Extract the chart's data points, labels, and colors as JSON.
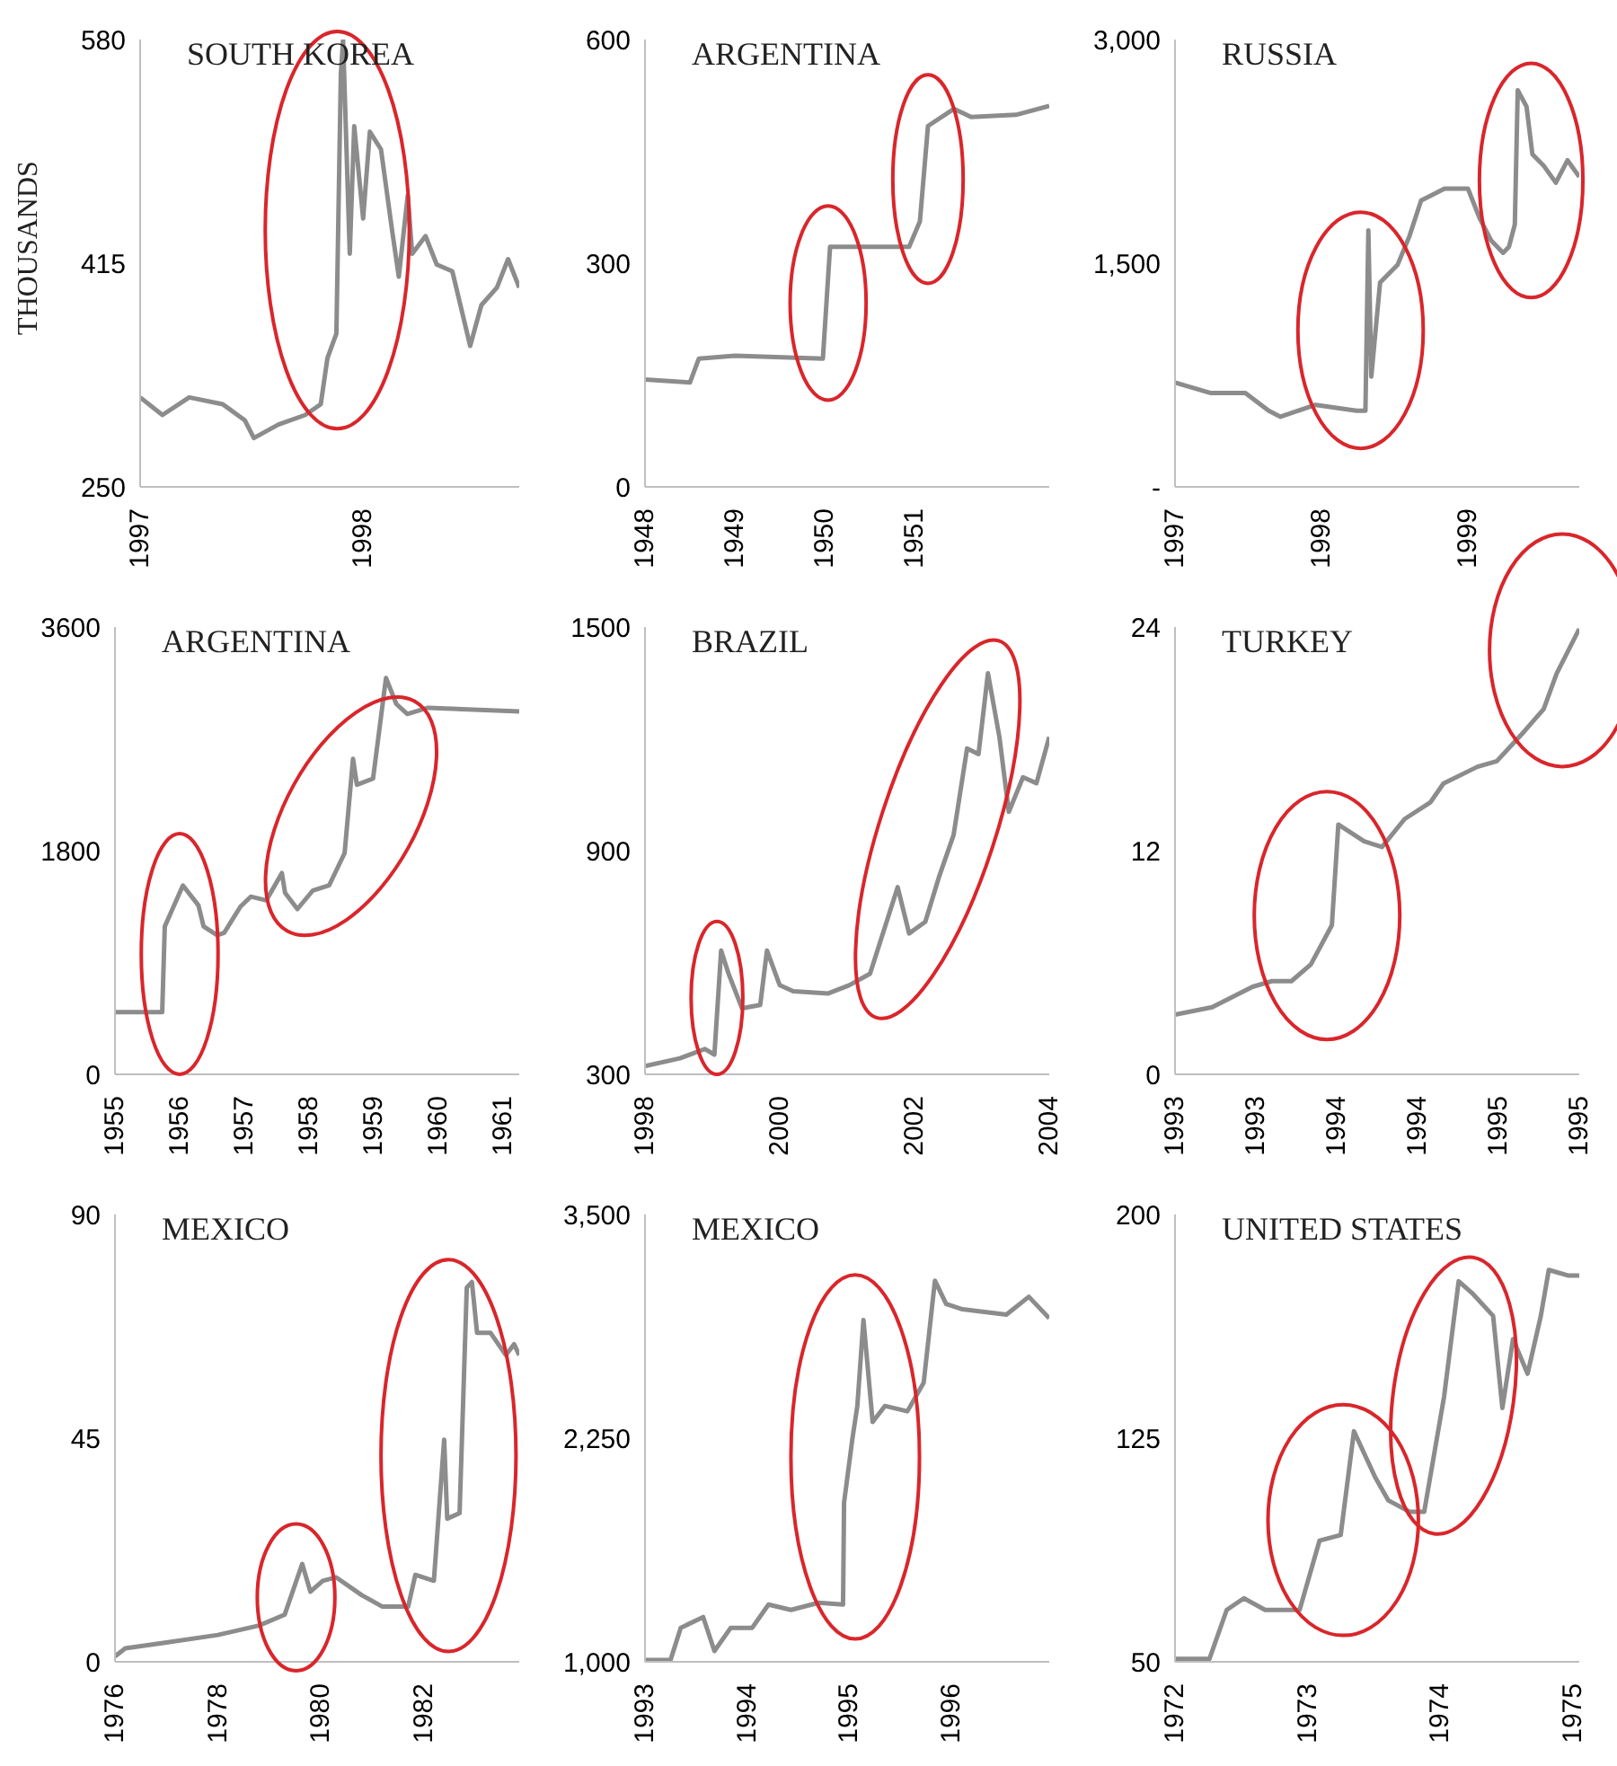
{
  "chart_data": [
    {
      "type": "line",
      "title": "SOUTH KOREA",
      "ylabel": "THOUSANDS",
      "x": [
        1997,
        1997.1,
        1997.22,
        1997.37,
        1997.47,
        1997.51,
        1997.62,
        1997.74,
        1997.81,
        1997.84,
        1997.88,
        1997.9,
        1997.91,
        1997.94,
        1997.96,
        1998,
        1998.03,
        1998.08,
        1998.13,
        1998.16,
        1998.2,
        1998.22,
        1998.28,
        1998.33,
        1998.4,
        1998.48,
        1998.53,
        1998.6,
        1998.65,
        1998.7
      ],
      "series": [
        {
          "color": "#8c8c8c",
          "values": [
            316,
            303,
            316,
            311,
            299,
            286,
            296,
            303,
            311,
            345,
            363,
            554,
            580,
            422,
            516,
            448,
            512,
            499,
            439,
            405,
            465,
            422,
            435,
            414,
            409,
            354,
            384,
            397,
            418,
            397
          ]
        }
      ],
      "xlim": [
        1997,
        1998.7
      ],
      "xticks": [
        1997,
        1998
      ],
      "ylim": [
        250,
        580
      ],
      "yticks": [
        250,
        415,
        580
      ]
    },
    {
      "type": "line",
      "title": "ARGENTINA",
      "x": [
        1948,
        1948.5,
        1948.6,
        1949,
        1949.98,
        1950.06,
        1950.94,
        1951.06,
        1951.15,
        1951.44,
        1951.63,
        1952.13,
        1952.5
      ],
      "series": [
        {
          "color": "#8c8c8c",
          "values": [
            144,
            140,
            172,
            176,
            172,
            322,
            322,
            356,
            484,
            507,
            496,
            499,
            511
          ]
        }
      ],
      "xlim": [
        1948,
        1952.5
      ],
      "xticks": [
        1948,
        1949,
        1950,
        1951
      ],
      "ylim": [
        0,
        600
      ],
      "yticks": [
        0,
        300,
        600
      ]
    },
    {
      "type": "line",
      "title": "RUSSIA",
      "x": [
        1997,
        1997.24,
        1997.48,
        1997.64,
        1997.72,
        1997.96,
        1998.24,
        1998.3,
        1998.32,
        1998.34,
        1998.4,
        1998.52,
        1998.6,
        1998.68,
        1998.84,
        1999,
        1999.08,
        1999.16,
        1999.24,
        1999.28,
        1999.32,
        1999.34,
        1999.4,
        1999.44,
        1999.52,
        1999.6,
        1999.68,
        1999.76
      ],
      "series": [
        {
          "color": "#8c8c8c",
          "values": [
            700,
            630,
            630,
            510,
            470,
            550,
            510,
            510,
            1720,
            740,
            1370,
            1490,
            1680,
            1920,
            2000,
            2000,
            1800,
            1650,
            1570,
            1610,
            1760,
            2660,
            2550,
            2230,
            2150,
            2040,
            2190,
            2080
          ]
        }
      ],
      "xlim": [
        1997,
        1999.76
      ],
      "xticks": [
        1997,
        1998,
        1999
      ],
      "ylim": [
        0,
        3000
      ],
      "yticks": [
        {
          "value": 0,
          "label": "-"
        },
        {
          "value": 1500,
          "label": "1,500"
        },
        {
          "value": 3000,
          "label": "3,000"
        }
      ]
    },
    {
      "type": "line",
      "title": "ARGENTINA",
      "x": [
        1955,
        1955.73,
        1955.77,
        1956.05,
        1956.29,
        1956.37,
        1956.58,
        1956.69,
        1956.94,
        1957.1,
        1957.34,
        1957.58,
        1957.63,
        1957.82,
        1958.06,
        1958.31,
        1958.55,
        1958.68,
        1958.74,
        1958.99,
        1959.19,
        1959.35,
        1959.52,
        1959.84,
        1961.25
      ],
      "series": [
        {
          "color": "#8c8c8c",
          "values": [
            500,
            500,
            1190,
            1520,
            1360,
            1190,
            1120,
            1140,
            1350,
            1430,
            1400,
            1620,
            1460,
            1330,
            1480,
            1520,
            1780,
            2540,
            2330,
            2380,
            3190,
            2980,
            2900,
            2950,
            2920
          ]
        }
      ],
      "xlim": [
        1955,
        1961.25
      ],
      "xticks": [
        1955,
        1956,
        1957,
        1958,
        1959,
        1960,
        1961
      ],
      "ylim": [
        0,
        3600
      ],
      "yticks": [
        0,
        1800,
        3600
      ]
    },
    {
      "type": "line",
      "title": "BRAZIL",
      "x": [
        1998,
        1998.52,
        1998.89,
        1999.03,
        1999.13,
        1999.24,
        1999.44,
        1999.71,
        1999.81,
        2000,
        2000.2,
        2000.72,
        2001.03,
        2001.34,
        2001.75,
        2001.92,
        2002.16,
        2002.37,
        2002.58,
        2002.78,
        2002.95,
        2003.09,
        2003.26,
        2003.4,
        2003.61,
        2003.81,
        2004
      ],
      "series": [
        {
          "color": "#8c8c8c",
          "values": [
            322,
            343,
            368,
            353,
            632,
            570,
            477,
            486,
            632,
            539,
            523,
            517,
            539,
            570,
            802,
            678,
            709,
            833,
            942,
            1174,
            1159,
            1376,
            1205,
            1004,
            1097,
            1081,
            1205
          ]
        }
      ],
      "xlim": [
        1998,
        2004
      ],
      "xticks": [
        1998,
        2000,
        2002,
        2004
      ],
      "ylim": [
        300,
        1500
      ],
      "yticks": [
        300,
        900,
        1500
      ]
    },
    {
      "type": "line",
      "title": "TURKEY",
      "x": [
        1993,
        1993.23,
        1993.48,
        1993.6,
        1993.72,
        1993.84,
        1993.97,
        1994.01,
        1994.17,
        1994.28,
        1994.42,
        1994.58,
        1994.66,
        1994.87,
        1994.99,
        1995.16,
        1995.28,
        1995.36,
        1995.5
      ],
      "series": [
        {
          "color": "#8c8c8c",
          "values": [
            3.2,
            3.6,
            4.7,
            5.0,
            5.0,
            5.9,
            8.0,
            13.4,
            12.5,
            12.2,
            13.7,
            14.6,
            15.6,
            16.5,
            16.8,
            18.4,
            19.6,
            21.5,
            23.9
          ]
        }
      ],
      "xlim": [
        1993,
        1995.5
      ],
      "xticks": [
        {
          "value": 1993,
          "label": "1993"
        },
        {
          "value": 1993.5,
          "label": "1993"
        },
        {
          "value": 1994,
          "label": "1994"
        },
        {
          "value": 1994.5,
          "label": "1994"
        },
        {
          "value": 1995,
          "label": "1995"
        },
        {
          "value": 1995.5,
          "label": "1995"
        }
      ],
      "ylim": [
        0,
        24
      ],
      "yticks": [
        0,
        12,
        24
      ]
    },
    {
      "type": "line",
      "title": "MEXICO",
      "x": [
        1976,
        1976.2,
        1977,
        1978,
        1978.8,
        1979.3,
        1979.64,
        1979.8,
        1980.04,
        1980.3,
        1980.8,
        1981.2,
        1981.7,
        1981.84,
        1982.2,
        1982.4,
        1982.46,
        1982.7,
        1982.84,
        1982.94,
        1983.04,
        1983.3,
        1983.6,
        1983.76,
        1983.86
      ],
      "series": [
        {
          "color": "#8c8c8c",
          "values": [
            1.1,
            2.7,
            3.9,
            5.4,
            7.3,
            9.5,
            19.7,
            14.1,
            16.3,
            17.0,
            13.4,
            11.1,
            11.1,
            17.5,
            16.3,
            44.7,
            28.8,
            29.9,
            75.3,
            76.4,
            66.2,
            66.2,
            61.7,
            63.9,
            61.7
          ]
        }
      ],
      "xlim": [
        1976,
        1983.86
      ],
      "xticks": [
        1976,
        1978,
        1980,
        1982
      ],
      "ylim": [
        0,
        90
      ],
      "yticks": [
        0,
        45,
        90
      ]
    },
    {
      "type": "line",
      "title": "MEXICO",
      "x": [
        1993,
        1993.25,
        1993.35,
        1993.57,
        1993.68,
        1993.84,
        1994.05,
        1994.21,
        1994.43,
        1994.7,
        1994.94,
        1994.95,
        1995.03,
        1995.08,
        1995.14,
        1995.23,
        1995.35,
        1995.57,
        1995.73,
        1995.84,
        1995.95,
        1996.11,
        1996.54,
        1996.76,
        1996.96
      ],
      "series": [
        {
          "color": "#8c8c8c",
          "values": [
            1010,
            1010,
            1190,
            1250,
            1060,
            1190,
            1190,
            1320,
            1290,
            1330,
            1320,
            1890,
            2240,
            2430,
            2910,
            2340,
            2430,
            2400,
            2560,
            3130,
            3000,
            2970,
            2940,
            3040,
            2920
          ]
        }
      ],
      "xlim": [
        1993,
        1996.96
      ],
      "xticks": [
        1993,
        1994,
        1995,
        1996
      ],
      "ylim": [
        1000,
        3500
      ],
      "yticks": [
        {
          "value": 1000,
          "label": "1,000"
        },
        {
          "value": 2250,
          "label": "2,250"
        },
        {
          "value": 3500,
          "label": "3,500"
        }
      ]
    },
    {
      "type": "line",
      "title": "UNITED STATES",
      "x": [
        1972,
        1972.26,
        1972.39,
        1972.52,
        1972.68,
        1972.94,
        1973.09,
        1973.25,
        1973.35,
        1973.51,
        1973.61,
        1973.77,
        1973.88,
        1974.03,
        1974.14,
        1974.24,
        1974.4,
        1974.47,
        1974.55,
        1974.66,
        1974.76,
        1974.82,
        1974.97,
        1975.05
      ],
      "series": [
        {
          "color": "#8c8c8c",
          "values": [
            51,
            51,
            67.4,
            71.3,
            67.4,
            67.4,
            90.6,
            92.5,
            127.3,
            111.9,
            104.1,
            100.3,
            100.3,
            138.9,
            177.6,
            173.7,
            166.0,
            135.1,
            158.2,
            146.6,
            166.0,
            181.4,
            179.5,
            179.5
          ]
        }
      ],
      "xlim": [
        1972,
        1975.05
      ],
      "xticks": [
        1972,
        1973,
        1974,
        1975
      ],
      "ylim": [
        50,
        200
      ],
      "yticks": [
        50,
        125,
        200
      ]
    }
  ]
}
